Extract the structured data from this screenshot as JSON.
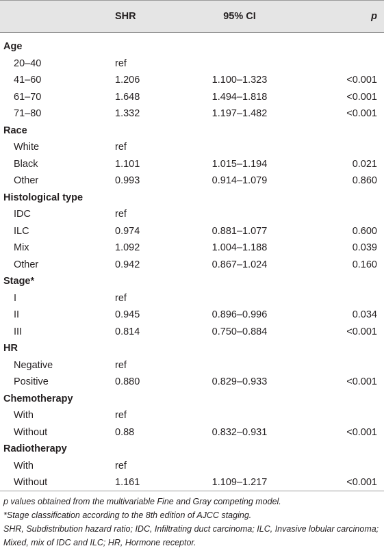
{
  "table": {
    "columns": [
      "SHR",
      "95% CI",
      "p"
    ],
    "groups": [
      {
        "label": "Age",
        "rows": [
          {
            "label": "20–40",
            "shr": "ref"
          },
          {
            "label": "41–60",
            "shr": "1.206",
            "ci": "1.100–1.323",
            "p": "<0.001"
          },
          {
            "label": "61–70",
            "shr": "1.648",
            "ci": "1.494–1.818",
            "p": "<0.001"
          },
          {
            "label": "71–80",
            "shr": "1.332",
            "ci": "1.197–1.482",
            "p": "<0.001"
          }
        ]
      },
      {
        "label": "Race",
        "rows": [
          {
            "label": "White",
            "shr": "ref"
          },
          {
            "label": "Black",
            "shr": "1.101",
            "ci": "1.015–1.194",
            "p": "0.021"
          },
          {
            "label": "Other",
            "shr": "0.993",
            "ci": "0.914–1.079",
            "p": "0.860"
          }
        ]
      },
      {
        "label": "Histological type",
        "rows": [
          {
            "label": "IDC",
            "shr": "ref"
          },
          {
            "label": "ILC",
            "shr": "0.974",
            "ci": "0.881–1.077",
            "p": "0.600"
          },
          {
            "label": "Mix",
            "shr": "1.092",
            "ci": "1.004–1.188",
            "p": "0.039"
          },
          {
            "label": "Other",
            "shr": "0.942",
            "ci": "0.867–1.024",
            "p": "0.160"
          }
        ]
      },
      {
        "label": "Stage*",
        "rows": [
          {
            "label": "I",
            "shr": "ref"
          },
          {
            "label": "II",
            "shr": "0.945",
            "ci": "0.896–0.996",
            "p": "0.034"
          },
          {
            "label": "III",
            "shr": "0.814",
            "ci": "0.750–0.884",
            "p": "<0.001"
          }
        ]
      },
      {
        "label": "HR",
        "rows": [
          {
            "label": "Negative",
            "shr": "ref"
          },
          {
            "label": "Positive",
            "shr": "0.880",
            "ci": "0.829–0.933",
            "p": "<0.001"
          }
        ]
      },
      {
        "label": "Chemotherapy",
        "rows": [
          {
            "label": "With",
            "shr": "ref"
          },
          {
            "label": "Without",
            "shr": "0.88",
            "ci": "0.832–0.931",
            "p": "<0.001"
          }
        ]
      },
      {
        "label": "Radiotherapy",
        "rows": [
          {
            "label": "With",
            "shr": "ref"
          },
          {
            "label": "Without",
            "shr": "1.161",
            "ci": "1.109–1.217",
            "p": "<0.001"
          }
        ]
      }
    ]
  },
  "footnotes": [
    "p values obtained from the multivariable Fine and Gray competing model.",
    "*Stage classification according to the 8th edition of AJCC staging.",
    "SHR, Subdistribution hazard ratio; IDC, Infiltrating duct carcinoma; ILC, Invasive lobular carcinoma; Mixed, mix of IDC and ILC; HR, Hormone receptor."
  ]
}
